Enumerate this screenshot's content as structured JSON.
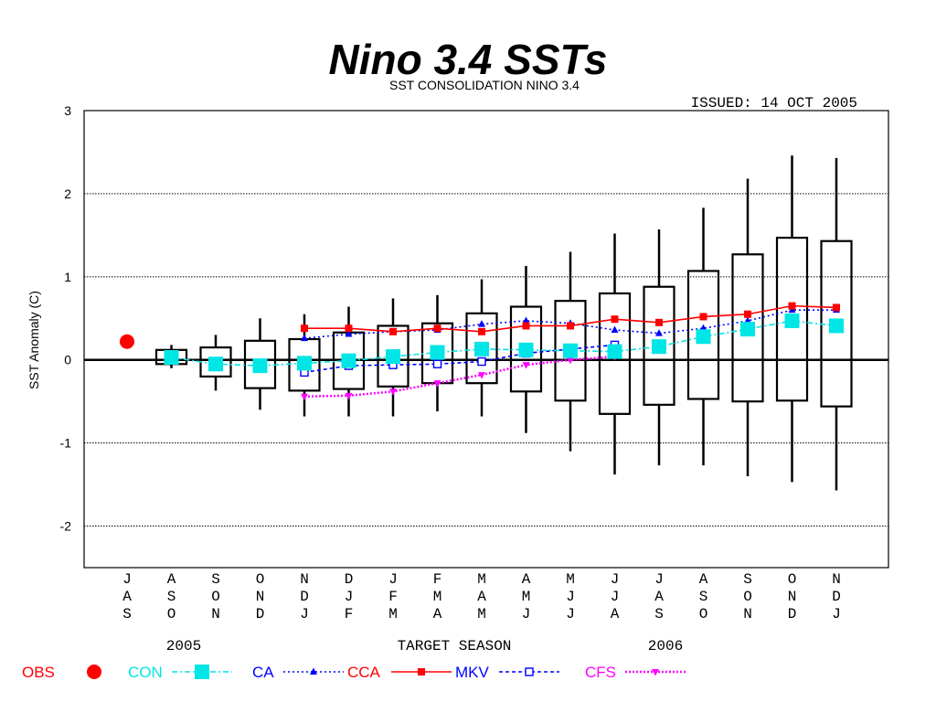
{
  "slide_title": "Nino 3.4 SSTs",
  "chart_data": {
    "type": "box",
    "title": "SST CONSOLIDATION NINO 3.4",
    "issued": "ISSUED: 14 OCT 2005",
    "ylabel": "SST Anomaly (C)",
    "xlabel": "TARGET SEASON",
    "year_labels": [
      "2005",
      "2006"
    ],
    "ylim": [
      -2.5,
      3
    ],
    "yticks": [
      3,
      2,
      1,
      0,
      -1,
      -2
    ],
    "grid": "dotted horizontal",
    "seasons": [
      [
        "J",
        "A",
        "S"
      ],
      [
        "A",
        "S",
        "O"
      ],
      [
        "S",
        "O",
        "N"
      ],
      [
        "O",
        "N",
        "D"
      ],
      [
        "N",
        "D",
        "J"
      ],
      [
        "D",
        "J",
        "F"
      ],
      [
        "J",
        "F",
        "M"
      ],
      [
        "F",
        "M",
        "A"
      ],
      [
        "M",
        "A",
        "M"
      ],
      [
        "A",
        "M",
        "J"
      ],
      [
        "M",
        "J",
        "J"
      ],
      [
        "J",
        "J",
        "A"
      ],
      [
        "J",
        "A",
        "S"
      ],
      [
        "A",
        "S",
        "O"
      ],
      [
        "S",
        "O",
        "N"
      ],
      [
        "O",
        "N",
        "D"
      ],
      [
        "N",
        "D",
        "J"
      ]
    ],
    "boxes": [
      null,
      {
        "low": -0.1,
        "q1": -0.05,
        "q3": 0.12,
        "high": 0.18
      },
      {
        "low": -0.37,
        "q1": -0.2,
        "q3": 0.15,
        "high": 0.3
      },
      {
        "low": -0.6,
        "q1": -0.34,
        "q3": 0.23,
        "high": 0.5
      },
      {
        "low": -0.68,
        "q1": -0.37,
        "q3": 0.25,
        "high": 0.55
      },
      {
        "low": -0.68,
        "q1": -0.35,
        "q3": 0.33,
        "high": 0.64
      },
      {
        "low": -0.68,
        "q1": -0.32,
        "q3": 0.41,
        "high": 0.74
      },
      {
        "low": -0.62,
        "q1": -0.28,
        "q3": 0.44,
        "high": 0.78
      },
      {
        "low": -0.68,
        "q1": -0.28,
        "q3": 0.56,
        "high": 0.97
      },
      {
        "low": -0.88,
        "q1": -0.38,
        "q3": 0.64,
        "high": 1.13
      },
      {
        "low": -1.1,
        "q1": -0.49,
        "q3": 0.71,
        "high": 1.3
      },
      {
        "low": -1.38,
        "q1": -0.65,
        "q3": 0.8,
        "high": 1.52
      },
      {
        "low": -1.27,
        "q1": -0.54,
        "q3": 0.88,
        "high": 1.57
      },
      {
        "low": -1.27,
        "q1": -0.47,
        "q3": 1.07,
        "high": 1.83
      },
      {
        "low": -1.4,
        "q1": -0.5,
        "q3": 1.27,
        "high": 2.18
      },
      {
        "low": -1.47,
        "q1": -0.49,
        "q3": 1.47,
        "high": 2.46
      },
      {
        "low": -1.57,
        "q1": -0.56,
        "q3": 1.43,
        "high": 2.43
      }
    ],
    "series": [
      {
        "name": "OBS",
        "color": "#ff0000",
        "marker": "circle",
        "line": "none",
        "values": [
          0.22,
          null,
          null,
          null,
          null,
          null,
          null,
          null,
          null,
          null,
          null,
          null,
          null,
          null,
          null,
          null,
          null
        ]
      },
      {
        "name": "CON",
        "color": "#00e5e5",
        "marker": "square-large",
        "line": "dash-dot",
        "values": [
          null,
          0.03,
          -0.05,
          -0.07,
          -0.04,
          -0.01,
          0.04,
          0.09,
          0.13,
          0.12,
          0.11,
          0.1,
          0.16,
          0.28,
          0.37,
          0.47,
          0.41
        ]
      },
      {
        "name": "CA",
        "color": "#0000ff",
        "marker": "triangle",
        "line": "dotted",
        "values": [
          null,
          null,
          null,
          null,
          0.26,
          0.31,
          0.34,
          0.36,
          0.43,
          0.47,
          0.44,
          0.36,
          0.32,
          0.38,
          0.47,
          0.6,
          0.6
        ]
      },
      {
        "name": "CCA",
        "color": "#ff0000",
        "marker": "square-filled",
        "line": "solid",
        "values": [
          null,
          null,
          null,
          null,
          0.38,
          0.38,
          0.34,
          0.38,
          0.34,
          0.41,
          0.41,
          0.49,
          0.45,
          0.52,
          0.55,
          0.65,
          0.63
        ]
      },
      {
        "name": "MKV",
        "color": "#0000ff",
        "marker": "square-open",
        "line": "dash",
        "values": [
          null,
          null,
          null,
          null,
          -0.15,
          -0.07,
          -0.06,
          -0.05,
          -0.02,
          0.08,
          0.13,
          0.18,
          null,
          null,
          null,
          null,
          null
        ]
      },
      {
        "name": "CFS",
        "color": "#ff00ff",
        "marker": "triangle-down",
        "line": "dotted-thick",
        "values": [
          null,
          null,
          null,
          null,
          -0.44,
          -0.43,
          -0.38,
          -0.28,
          -0.18,
          -0.06,
          0.0,
          0.04,
          null,
          null,
          null,
          null,
          null
        ]
      }
    ],
    "legend": {
      "placement": "bottom"
    }
  }
}
